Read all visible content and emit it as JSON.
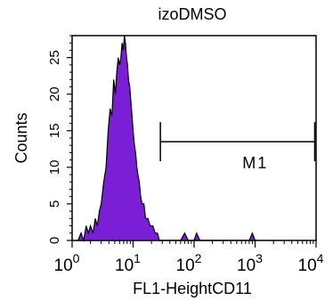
{
  "chart_data": {
    "type": "area",
    "title": "izoDMSO",
    "xlabel": "FL1-HeightCD11",
    "ylabel": "Counts",
    "x_scale": "log",
    "xlim": [
      1,
      10000
    ],
    "ylim": [
      0,
      28
    ],
    "fill_color": "#7a1fd6",
    "x_ticks": [
      {
        "base": "10",
        "exp": "0",
        "value": 1
      },
      {
        "base": "10",
        "exp": "1",
        "value": 10
      },
      {
        "base": "10",
        "exp": "2",
        "value": 100
      },
      {
        "base": "10",
        "exp": "3",
        "value": 1000
      },
      {
        "base": "10",
        "exp": "4",
        "value": 10000
      }
    ],
    "y_ticks": [
      {
        "label": "0",
        "value": 0
      },
      {
        "label": "5",
        "value": 5
      },
      {
        "label": "10",
        "value": 10
      },
      {
        "label": "15",
        "value": 15
      },
      {
        "label": "20",
        "value": 20
      },
      {
        "label": "25",
        "value": 25
      }
    ],
    "marker": {
      "label": "M1",
      "x_start": 28,
      "x_end": 9500,
      "y": 13.5
    },
    "histogram": [
      [
        1.25,
        0
      ],
      [
        1.4,
        1
      ],
      [
        1.55,
        0
      ],
      [
        1.7,
        2
      ],
      [
        1.85,
        1
      ],
      [
        2.0,
        2
      ],
      [
        2.2,
        1
      ],
      [
        2.4,
        3
      ],
      [
        2.6,
        2
      ],
      [
        2.8,
        4
      ],
      [
        3.0,
        5
      ],
      [
        3.3,
        8
      ],
      [
        3.6,
        10
      ],
      [
        3.9,
        15
      ],
      [
        4.2,
        18
      ],
      [
        4.5,
        17
      ],
      [
        4.8,
        22
      ],
      [
        5.1,
        20
      ],
      [
        5.4,
        23
      ],
      [
        5.7,
        25
      ],
      [
        6.0,
        24
      ],
      [
        6.3,
        25
      ],
      [
        6.6,
        27
      ],
      [
        6.9,
        26
      ],
      [
        7.2,
        28
      ],
      [
        7.5,
        27
      ],
      [
        7.8,
        25
      ],
      [
        8.1,
        24
      ],
      [
        8.4,
        22
      ],
      [
        8.8,
        21
      ],
      [
        9.2,
        19
      ],
      [
        9.6,
        17
      ],
      [
        10.0,
        15
      ],
      [
        10.5,
        13
      ],
      [
        11.0,
        12
      ],
      [
        11.5,
        10
      ],
      [
        12.0,
        9
      ],
      [
        12.6,
        8
      ],
      [
        13.3,
        6
      ],
      [
        14.0,
        5
      ],
      [
        15.0,
        5
      ],
      [
        16.0,
        3
      ],
      [
        17.5,
        3
      ],
      [
        19.0,
        2
      ],
      [
        21.0,
        2
      ],
      [
        23.0,
        1
      ],
      [
        25.0,
        1
      ],
      [
        27.0,
        0
      ],
      [
        60.0,
        0
      ],
      [
        70.0,
        1
      ],
      [
        80.0,
        0
      ],
      [
        100.0,
        0
      ],
      [
        110.0,
        1
      ],
      [
        125.0,
        0
      ],
      [
        800.0,
        0
      ],
      [
        900.0,
        1
      ],
      [
        1000.0,
        0
      ],
      [
        1100.0,
        0
      ]
    ]
  }
}
